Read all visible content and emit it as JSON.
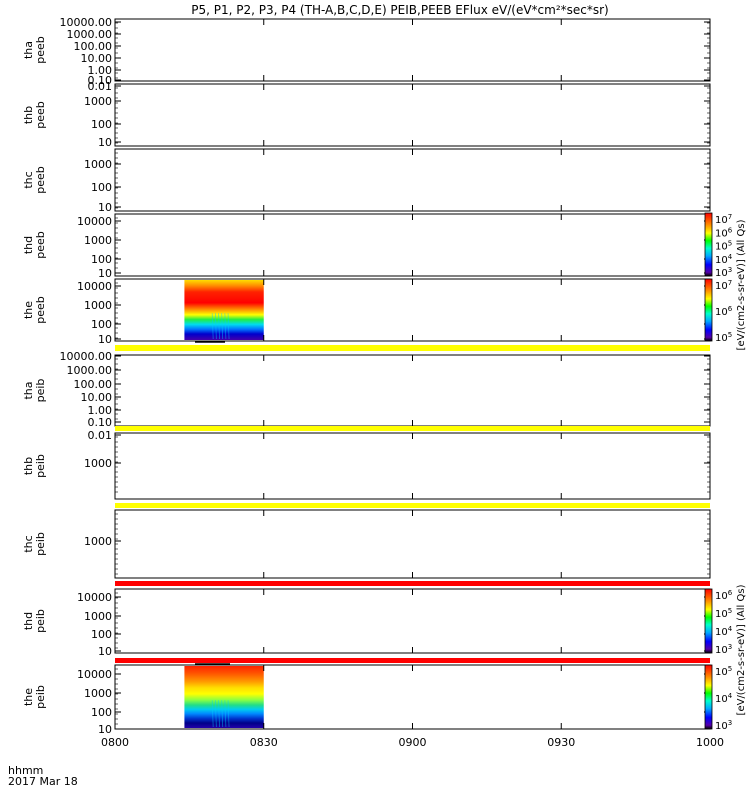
{
  "title": "P5, P1, P2, P3, P4 (TH-A,B,C,D,E) PEIB,PEEB EFlux eV/(eV*cm²*sec*sr)",
  "time_axis": {
    "label": "hhmm",
    "date": "2017 Mar 18",
    "ticks": [
      "0800",
      "0830",
      "0900",
      "0930",
      "1000"
    ]
  },
  "colors": {
    "yellow_bar": "#ffff00",
    "red_bar": "#ff0000",
    "background": "#ffffff",
    "axis": "#000000"
  },
  "colorbars": [
    {
      "label": "[eV/(cm2-s-sr-eV)] (All Qs)",
      "ticks": [
        {
          "base": "10",
          "exp": "7"
        },
        {
          "base": "10",
          "exp": "6"
        },
        {
          "base": "10",
          "exp": "5"
        },
        {
          "base": "10",
          "exp": "4"
        },
        {
          "base": "10",
          "exp": "3"
        }
      ]
    },
    {
      "label": "[eV/(cm2-s-sr-eV)] (All Qs)",
      "ticks": [
        {
          "base": "10",
          "exp": "7"
        },
        {
          "base": "10",
          "exp": "6"
        },
        {
          "base": "10",
          "exp": "5"
        }
      ]
    },
    {
      "label": "[eV/(cm2-s-sr-eV)] (All Qs)",
      "ticks": [
        {
          "base": "10",
          "exp": "6"
        },
        {
          "base": "10",
          "exp": "5"
        },
        {
          "base": "10",
          "exp": "4"
        },
        {
          "base": "10",
          "exp": "3"
        }
      ]
    },
    {
      "label": "[eV/(cm2-s-sr-eV)] (All Qs)",
      "ticks": [
        {
          "base": "10",
          "exp": "5"
        },
        {
          "base": "10",
          "exp": "4"
        },
        {
          "base": "10",
          "exp": "3"
        }
      ]
    }
  ],
  "chart_data": [
    {
      "type": "heatmap",
      "probe": "tha",
      "species": "peeb",
      "yticks": [
        "10000.00",
        "1000.00",
        "100.00",
        "10.00",
        "1.00",
        "0.10",
        "0.01"
      ],
      "data_time_range": null
    },
    {
      "type": "heatmap",
      "probe": "thb",
      "species": "peeb",
      "yticks": [
        "1000",
        "100",
        "10"
      ],
      "data_time_range": null
    },
    {
      "type": "heatmap",
      "probe": "thc",
      "species": "peeb",
      "yticks": [
        "1000",
        "100",
        "10"
      ],
      "data_time_range": null
    },
    {
      "type": "heatmap",
      "probe": "thd",
      "species": "peeb",
      "yticks": [
        "10000",
        "1000",
        "100",
        "10"
      ],
      "data_time_range": null
    },
    {
      "type": "heatmap",
      "probe": "the",
      "species": "peeb",
      "yticks": [
        "10000",
        "1000",
        "100",
        "10"
      ],
      "data_time_range": [
        "0814",
        "0830"
      ]
    },
    {
      "type": "heatmap",
      "probe": "tha",
      "species": "peib",
      "yticks": [
        "10000.00",
        "1000.00",
        "100.00",
        "10.00",
        "1.00",
        "0.10",
        "0.01"
      ],
      "data_time_range": null
    },
    {
      "type": "heatmap",
      "probe": "thb",
      "species": "peib",
      "yticks": [
        "1000"
      ],
      "data_time_range": null
    },
    {
      "type": "heatmap",
      "probe": "thc",
      "species": "peib",
      "yticks": [
        "1000"
      ],
      "data_time_range": null
    },
    {
      "type": "heatmap",
      "probe": "thd",
      "species": "peib",
      "yticks": [
        "10000",
        "1000",
        "100",
        "10"
      ],
      "data_time_range": null
    },
    {
      "type": "heatmap",
      "probe": "the",
      "species": "peib",
      "yticks": [
        "10000",
        "1000",
        "100",
        "10"
      ],
      "data_time_range": [
        "0814",
        "0830"
      ]
    }
  ]
}
